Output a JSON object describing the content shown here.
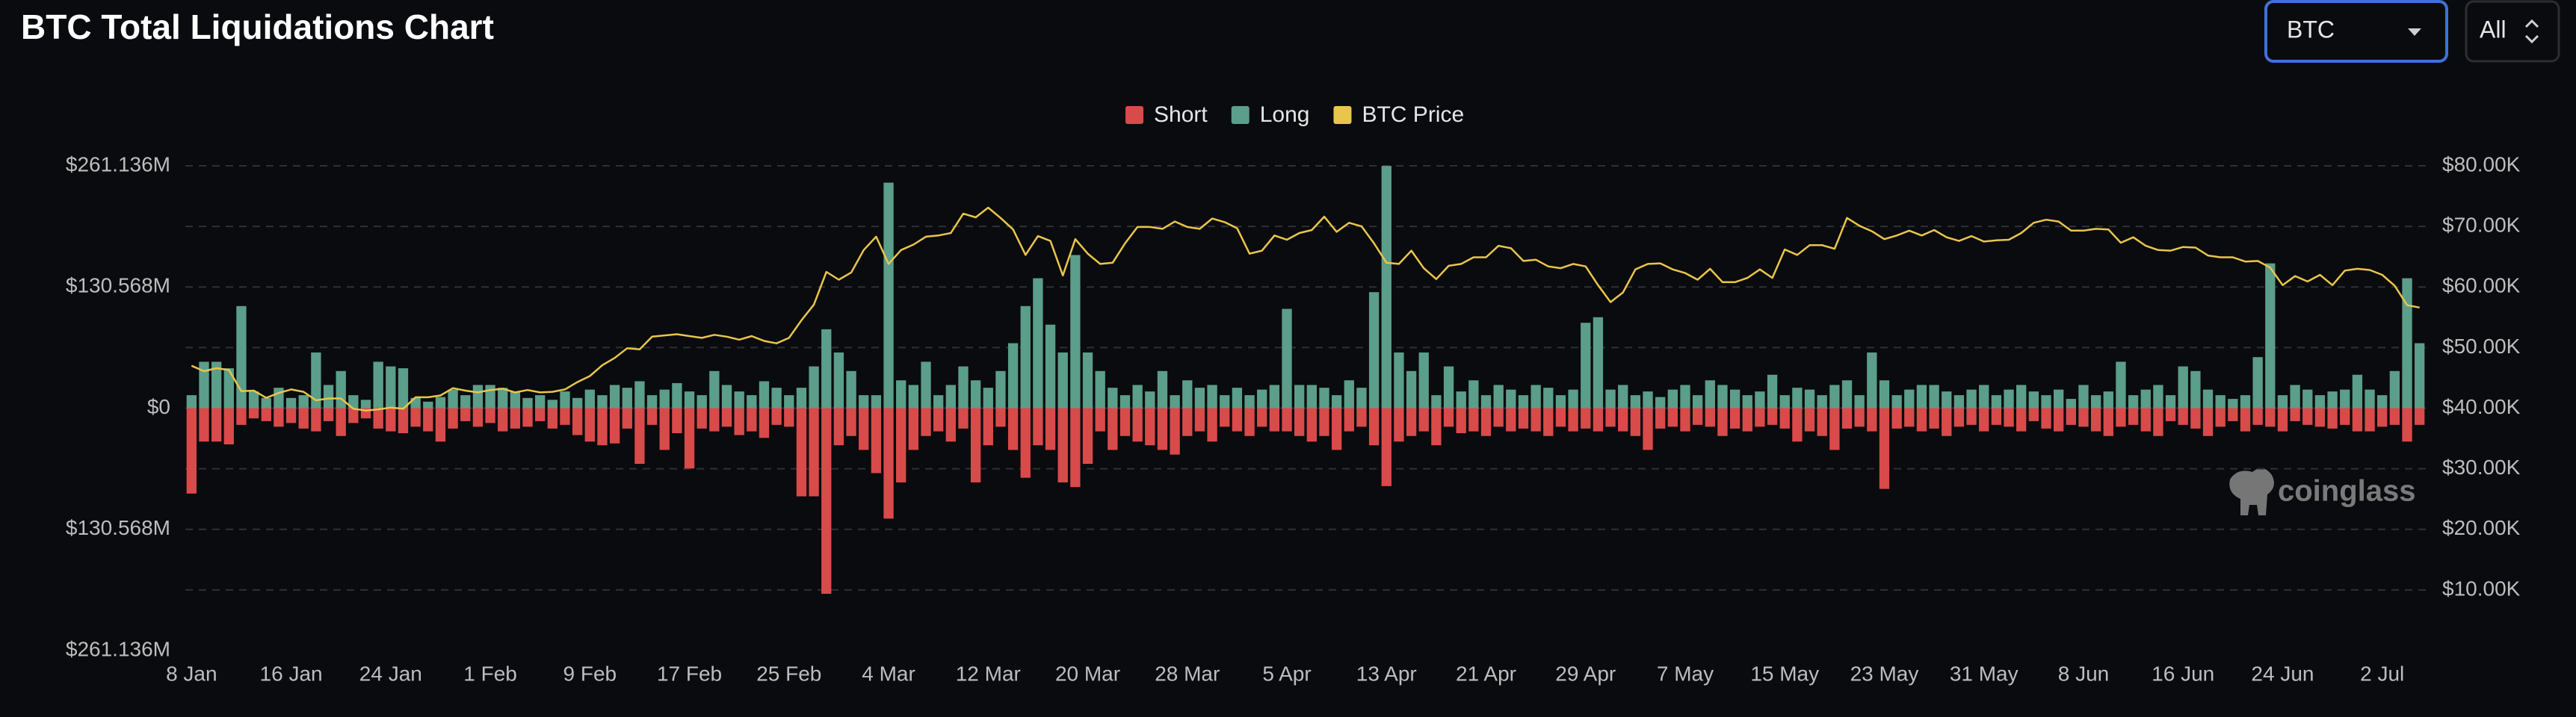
{
  "chart_data": {
    "type": "bar",
    "title": "BTC Total Liquidations Chart",
    "categories": [
      "8 Jan",
      null,
      null,
      null,
      null,
      null,
      null,
      null,
      "16 Jan",
      null,
      null,
      null,
      null,
      null,
      null,
      null,
      "24 Jan",
      null,
      null,
      null,
      null,
      null,
      null,
      null,
      "1 Feb",
      null,
      null,
      null,
      null,
      null,
      null,
      null,
      "9 Feb",
      null,
      null,
      null,
      null,
      null,
      null,
      null,
      "17 Feb",
      null,
      null,
      null,
      null,
      null,
      null,
      null,
      "25 Feb",
      null,
      null,
      null,
      null,
      null,
      null,
      null,
      "4 Mar",
      null,
      null,
      null,
      null,
      null,
      null,
      null,
      "12 Mar",
      null,
      null,
      null,
      null,
      null,
      null,
      null,
      "20 Mar",
      null,
      null,
      null,
      null,
      null,
      null,
      null,
      "28 Mar",
      null,
      null,
      null,
      null,
      null,
      null,
      null,
      "5 Apr",
      null,
      null,
      null,
      null,
      null,
      null,
      null,
      "13 Apr",
      null,
      null,
      null,
      null,
      null,
      null,
      null,
      "21 Apr",
      null,
      null,
      null,
      null,
      null,
      null,
      null,
      "29 Apr",
      null,
      null,
      null,
      null,
      null,
      null,
      null,
      "7 May",
      null,
      null,
      null,
      null,
      null,
      null,
      null,
      "15 May",
      null,
      null,
      null,
      null,
      null,
      null,
      null,
      "23 May",
      null,
      null,
      null,
      null,
      null,
      null,
      null,
      "31 May",
      null,
      null,
      null,
      null,
      null,
      null,
      null,
      "8 Jun",
      null,
      null,
      null,
      null,
      null,
      null,
      null,
      "16 Jun",
      null,
      null,
      null,
      null,
      null,
      null,
      null,
      "24 Jun",
      null,
      null,
      null,
      null,
      null,
      null,
      null,
      "2 Jul",
      null,
      null,
      null
    ],
    "series": [
      {
        "name": "Short",
        "color": "#d94a4a",
        "values": [
          -92,
          -36,
          -36,
          -39,
          -18,
          -11,
          -14,
          -20,
          -16,
          -22,
          -25,
          -14,
          -30,
          -16,
          -11,
          -22,
          -25,
          -27,
          -20,
          -25,
          -36,
          -22,
          -14,
          -20,
          -16,
          -25,
          -22,
          -20,
          -14,
          -22,
          -18,
          -29,
          -36,
          -40,
          -38,
          -22,
          -60,
          -18,
          -45,
          -27,
          -65,
          -22,
          -25,
          -20,
          -29,
          -25,
          -32,
          -18,
          -20,
          -95,
          -95,
          -200,
          -40,
          -30,
          -45,
          -70,
          -119,
          -80,
          -45,
          -30,
          -25,
          -36,
          -22,
          -80,
          -40,
          -20,
          -45,
          -75,
          -40,
          -45,
          -80,
          -85,
          -60,
          -25,
          -45,
          -30,
          -36,
          -40,
          -45,
          -50,
          -30,
          -25,
          -36,
          -20,
          -25,
          -30,
          -20,
          -25,
          -25,
          -30,
          -36,
          -30,
          -45,
          -25,
          -20,
          -40,
          -84,
          -36,
          -30,
          -25,
          -40,
          -20,
          -27,
          -25,
          -30,
          -20,
          -25,
          -22,
          -25,
          -30,
          -20,
          -25,
          -22,
          -25,
          -20,
          -25,
          -30,
          -45,
          -22,
          -20,
          -25,
          -18,
          -20,
          -30,
          -22,
          -25,
          -20,
          -18,
          -22,
          -36,
          -25,
          -30,
          -45,
          -22,
          -20,
          -25,
          -87,
          -22,
          -20,
          -25,
          -22,
          -30,
          -20,
          -18,
          -25,
          -18,
          -20,
          -25,
          -14,
          -22,
          -25,
          -18,
          -20,
          -25,
          -30,
          -20,
          -18,
          -25,
          -30,
          -14,
          -18,
          -22,
          -30,
          -20,
          -14,
          -25,
          -18,
          -20,
          -25,
          -14,
          -18,
          -20,
          -22,
          -18,
          -25,
          -25,
          -20,
          -18,
          -36,
          -18
        ]
      },
      {
        "name": "Long",
        "color": "#5b9e8a",
        "values": [
          14,
          50,
          50,
          43,
          110,
          18,
          11,
          22,
          11,
          14,
          60,
          25,
          40,
          14,
          9,
          50,
          45,
          43,
          11,
          7,
          12,
          20,
          14,
          25,
          25,
          22,
          18,
          11,
          14,
          9,
          18,
          11,
          20,
          14,
          25,
          22,
          29,
          14,
          20,
          27,
          18,
          14,
          40,
          25,
          18,
          14,
          29,
          22,
          14,
          22,
          45,
          85,
          60,
          40,
          14,
          14,
          243,
          30,
          25,
          50,
          14,
          25,
          45,
          30,
          22,
          40,
          70,
          110,
          140,
          90,
          60,
          165,
          60,
          40,
          22,
          14,
          25,
          18,
          40,
          14,
          30,
          22,
          25,
          14,
          22,
          14,
          20,
          25,
          107,
          25,
          25,
          22,
          14,
          30,
          22,
          125,
          261,
          60,
          40,
          60,
          14,
          45,
          18,
          30,
          14,
          25,
          20,
          14,
          25,
          22,
          14,
          20,
          92,
          98,
          20,
          25,
          14,
          18,
          12,
          20,
          25,
          14,
          30,
          25,
          20,
          14,
          18,
          36,
          14,
          22,
          20,
          14,
          25,
          30,
          14,
          60,
          30,
          14,
          20,
          25,
          25,
          18,
          14,
          20,
          25,
          14,
          20,
          25,
          18,
          14,
          20,
          10,
          25,
          14,
          18,
          50,
          14,
          20,
          25,
          14,
          45,
          40,
          20,
          14,
          10,
          14,
          55,
          156,
          14,
          25,
          20,
          14,
          18,
          20,
          36,
          20,
          14,
          40,
          140,
          70
        ]
      },
      {
        "name": "BTC Price",
        "color": "#e9c54b",
        "axis": "y2",
        "values": [
          47000,
          46100,
          46600,
          46300,
          42800,
          42900,
          41700,
          42500,
          43100,
          42700,
          41300,
          41600,
          41600,
          39900,
          39600,
          39800,
          40100,
          39900,
          41800,
          41800,
          42100,
          43300,
          42900,
          42600,
          43000,
          43200,
          42600,
          43000,
          42600,
          42700,
          43100,
          44300,
          45300,
          47100,
          48300,
          49900,
          49700,
          51800,
          52000,
          52200,
          51900,
          51600,
          52100,
          51800,
          51300,
          51900,
          51100,
          50700,
          51600,
          54500,
          57100,
          62500,
          61200,
          62400,
          66100,
          68300,
          63800,
          66100,
          67000,
          68300,
          68500,
          68900,
          72100,
          71500,
          73100,
          71400,
          69500,
          65300,
          68400,
          67600,
          61900,
          67900,
          65500,
          63800,
          64000,
          67200,
          69900,
          69900,
          69600,
          70800,
          69900,
          69600,
          71300,
          70700,
          69700,
          65500,
          66000,
          68500,
          67800,
          68900,
          69400,
          71600,
          69100,
          70600,
          70000,
          67200,
          64000,
          63800,
          66000,
          63100,
          61300,
          63500,
          63800,
          64900,
          64900,
          66800,
          66400,
          64300,
          64500,
          63400,
          63100,
          63800,
          63400,
          60300,
          57500,
          59100,
          62900,
          63800,
          63900,
          62900,
          62300,
          61200,
          63000,
          60800,
          60800,
          61500,
          62900,
          61500,
          66200,
          65300,
          66900,
          66900,
          66300,
          71400,
          70100,
          69200,
          67900,
          68500,
          69300,
          68500,
          69400,
          68200,
          67600,
          68400,
          67500,
          67700,
          67800,
          68900,
          70600,
          71100,
          70800,
          69300,
          69300,
          69600,
          69500,
          67300,
          68200,
          66800,
          66100,
          66000,
          66600,
          66500,
          65200,
          64900,
          64900,
          64200,
          64300,
          63200,
          60300,
          61800,
          60900,
          62000,
          60300,
          62700,
          63000,
          62800,
          62000,
          60200,
          57000,
          56600
        ]
      }
    ],
    "ylim": [
      -261.136,
      261.136
    ],
    "yticks": [
      {
        "value": 261.136,
        "label": "$261.136M"
      },
      {
        "value": 130.568,
        "label": "$130.568M"
      },
      {
        "value": 0,
        "label": "$0"
      },
      {
        "value": -130.568,
        "label": "$130.568M"
      },
      {
        "value": -261.136,
        "label": "$261.136M"
      }
    ],
    "y2lim": [
      0,
      80000
    ],
    "y2ticks": [
      {
        "value": 80000,
        "label": "$80.00K"
      },
      {
        "value": 70000,
        "label": "$70.00K"
      },
      {
        "value": 60000,
        "label": "$60.00K"
      },
      {
        "value": 50000,
        "label": "$50.00K"
      },
      {
        "value": 40000,
        "label": "$40.00K"
      },
      {
        "value": 30000,
        "label": "$30.00K"
      },
      {
        "value": 20000,
        "label": "$20.00K"
      },
      {
        "value": 10000,
        "label": "$10.00K"
      }
    ],
    "grid": true,
    "legend": "top"
  },
  "controls": {
    "coin": "BTC",
    "range": "All"
  },
  "watermark": "coinglass"
}
